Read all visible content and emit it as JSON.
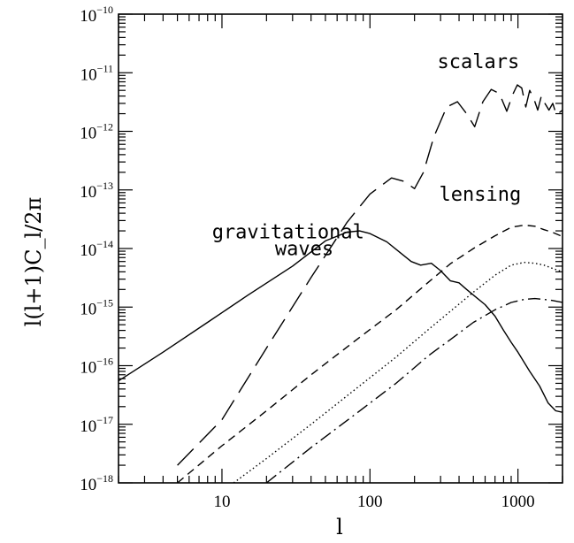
{
  "chart_data": {
    "type": "line",
    "title": "",
    "xlabel": "l",
    "ylabel": "l(l+1)C_l/2π",
    "x_scale": "log",
    "y_scale": "log",
    "xlim": [
      2,
      2000
    ],
    "ylim": [
      1e-18,
      1e-10
    ],
    "grid": false,
    "legend": "none",
    "x_ticks": [
      {
        "value": 10,
        "label": "10"
      },
      {
        "value": 100,
        "label": "100"
      },
      {
        "value": 1000,
        "label": "1000"
      }
    ],
    "y_ticks": [
      {
        "value": 1e-18,
        "base": "10",
        "exp": "−18"
      },
      {
        "value": 1e-17,
        "base": "10",
        "exp": "−17"
      },
      {
        "value": 1e-16,
        "base": "10",
        "exp": "−16"
      },
      {
        "value": 1e-15,
        "base": "10",
        "exp": "−15"
      },
      {
        "value": 1e-14,
        "base": "10",
        "exp": "−14"
      },
      {
        "value": 1e-13,
        "base": "10",
        "exp": "−13"
      },
      {
        "value": 1e-12,
        "base": "10",
        "exp": "−12"
      },
      {
        "value": 1e-11,
        "base": "10",
        "exp": "−11"
      },
      {
        "value": 1e-10,
        "base": "10",
        "exp": "−10"
      }
    ],
    "annotations": [
      {
        "text": "scalars",
        "x": 540,
        "y": 1.2e-11
      },
      {
        "text": "lensing",
        "x": 555,
        "y": 6.5e-14
      },
      {
        "text": "gravitational",
        "x": 28,
        "y": 1.5e-14
      },
      {
        "text": "waves",
        "x": 36,
        "y": 7.7e-15
      }
    ],
    "series": [
      {
        "style": "long-dash",
        "x": [
          5,
          10,
          20,
          40,
          70,
          100,
          140,
          170,
          200,
          230,
          270,
          330,
          390,
          450,
          510,
          580,
          660,
          750,
          840,
          920,
          990,
          1060,
          1130,
          1200,
          1280,
          1360,
          1440,
          1520,
          1620,
          1720,
          1820,
          2000
        ],
        "y": [
          2e-18,
          1.2e-17,
          2e-16,
          3.2e-15,
          2.8e-14,
          8.5e-14,
          1.6e-13,
          1.4e-13,
          1.05e-13,
          2e-13,
          8e-13,
          2.6e-12,
          3.2e-12,
          2e-12,
          1.2e-12,
          3.2e-12,
          5.2e-12,
          4.4e-12,
          2.2e-12,
          4.2e-12,
          6.2e-12,
          5.5e-12,
          2.6e-12,
          5e-12,
          3.6e-12,
          2.3e-12,
          4e-12,
          3e-12,
          2.3e-12,
          3e-12,
          1.9e-12,
          2.3e-12
        ]
      },
      {
        "style": "solid",
        "x": [
          2,
          4,
          8,
          15,
          30,
          50,
          70,
          85,
          100,
          130,
          160,
          190,
          220,
          260,
          300,
          350,
          400,
          450,
          500,
          600,
          700,
          800,
          900,
          1000,
          1200,
          1400,
          1600,
          1800,
          2000
        ],
        "y": [
          5.5e-17,
          1.7e-16,
          5.5e-16,
          1.6e-15,
          5e-15,
          1.35e-14,
          1.9e-14,
          2e-14,
          1.8e-14,
          1.3e-14,
          8.5e-15,
          6e-15,
          5.2e-15,
          5.6e-15,
          4.2e-15,
          2.8e-15,
          2.6e-15,
          2e-15,
          1.6e-15,
          1.1e-15,
          7e-16,
          4e-16,
          2.5e-16,
          1.7e-16,
          8e-17,
          4.5e-17,
          2.3e-17,
          1.7e-17,
          1.6e-17
        ]
      },
      {
        "style": "short-dash",
        "x": [
          5,
          10,
          20,
          40,
          80,
          150,
          250,
          350,
          500,
          700,
          900,
          1100,
          1300,
          1500,
          1700,
          2000
        ],
        "y": [
          1e-18,
          4.3e-18,
          1.7e-17,
          7e-17,
          2.7e-16,
          9e-16,
          2.7e-15,
          5.5e-15,
          1e-14,
          1.65e-14,
          2.3e-14,
          2.5e-14,
          2.4e-14,
          2.1e-14,
          1.9e-14,
          1.6e-14
        ]
      },
      {
        "style": "dotted",
        "x": [
          12,
          20,
          40,
          80,
          150,
          250,
          350,
          500,
          700,
          900,
          1100,
          1300,
          1500,
          1700,
          2000
        ],
        "y": [
          1e-18,
          2.6e-18,
          1e-17,
          4e-17,
          1.4e-16,
          4.2e-16,
          8.5e-16,
          1.8e-15,
          3.5e-15,
          5.2e-15,
          5.8e-15,
          5.6e-15,
          5.2e-15,
          4.6e-15,
          4e-15
        ]
      },
      {
        "style": "dash-dot",
        "x": [
          20,
          40,
          80,
          150,
          250,
          350,
          500,
          700,
          900,
          1100,
          1300,
          1500,
          1700,
          2000
        ],
        "y": [
          1e-18,
          4e-18,
          1.5e-17,
          5e-17,
          1.5e-16,
          2.8e-16,
          5.5e-16,
          9e-16,
          1.2e-15,
          1.35e-15,
          1.4e-15,
          1.35e-15,
          1.3e-15,
          1.2e-15
        ]
      }
    ]
  }
}
